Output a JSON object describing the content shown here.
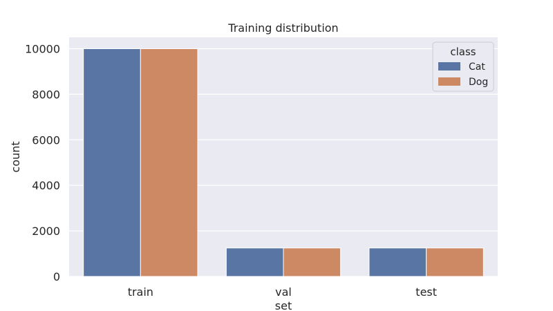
{
  "chart_data": {
    "type": "bar",
    "title": "Training distribution",
    "xlabel": "set",
    "ylabel": "count",
    "categories": [
      "train",
      "val",
      "test"
    ],
    "series": [
      {
        "name": "Cat",
        "values": [
          10000,
          1250,
          1250
        ],
        "color": "#5875a4"
      },
      {
        "name": "Dog",
        "values": [
          10000,
          1250,
          1250
        ],
        "color": "#cc8963"
      }
    ],
    "ylim": [
      0,
      10500
    ],
    "yticks": [
      0,
      2000,
      4000,
      6000,
      8000,
      10000
    ],
    "ytick_labels": [
      "0",
      "2000",
      "4000",
      "6000",
      "8000",
      "10000"
    ],
    "grid": true,
    "background": "#eaeaf2",
    "legend": {
      "title": "class",
      "placement": "top-right"
    }
  }
}
